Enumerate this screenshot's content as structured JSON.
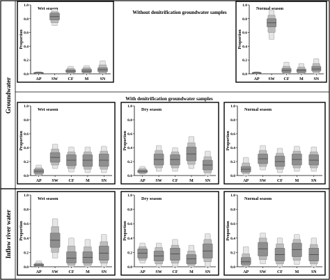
{
  "headings": {
    "without": "Without denitrification groundwater samples",
    "with": "With denitrification groundwater samples"
  },
  "groups": {
    "groundwater": "Groundwater",
    "inflow": "Inflow river water"
  },
  "chart_data": [
    {
      "id": "gw-without-wet",
      "type": "box",
      "season_label": "Wet season",
      "ylabel": "Proportion",
      "categories": [
        "AP",
        "SW",
        "CF",
        "M",
        "SN"
      ],
      "ylim": [
        0,
        1.0
      ],
      "yticks": [
        "0.0",
        "0.2",
        "0.4",
        "0.6",
        "0.8",
        "1.0"
      ],
      "bands": [
        {
          "category": "AP",
          "outer": [
            0.0,
            0.03
          ],
          "mid": [
            0.005,
            0.025
          ],
          "inner": [
            0.01,
            0.02
          ],
          "median": 0.015
        },
        {
          "category": "SW",
          "outer": [
            0.7,
            0.94
          ],
          "mid": [
            0.74,
            0.9
          ],
          "inner": [
            0.78,
            0.88
          ],
          "median": 0.83
        },
        {
          "category": "CF",
          "outer": [
            0.0,
            0.11
          ],
          "mid": [
            0.01,
            0.08
          ],
          "inner": [
            0.02,
            0.06
          ],
          "median": 0.04
        },
        {
          "category": "M",
          "outer": [
            0.0,
            0.12
          ],
          "mid": [
            0.01,
            0.09
          ],
          "inner": [
            0.02,
            0.07
          ],
          "median": 0.04
        },
        {
          "category": "SN",
          "outer": [
            0.0,
            0.19
          ],
          "mid": [
            0.01,
            0.13
          ],
          "inner": [
            0.03,
            0.09
          ],
          "median": 0.06
        }
      ]
    },
    {
      "id": "gw-without-normal",
      "type": "box",
      "season_label": "Normal season",
      "ylabel": "Proportion",
      "categories": [
        "AP",
        "SW",
        "CF",
        "M",
        "SN"
      ],
      "ylim": [
        0,
        1.0
      ],
      "yticks": [
        "0.0",
        "0.2",
        "0.4",
        "0.6",
        "0.8",
        "1.0"
      ],
      "bands": [
        {
          "category": "AP",
          "outer": [
            0.0,
            0.03
          ],
          "mid": [
            0.005,
            0.025
          ],
          "inner": [
            0.01,
            0.02
          ],
          "median": 0.015
        },
        {
          "category": "SW",
          "outer": [
            0.5,
            0.92
          ],
          "mid": [
            0.6,
            0.85
          ],
          "inner": [
            0.68,
            0.8
          ],
          "median": 0.74
        },
        {
          "category": "CF",
          "outer": [
            0.0,
            0.17
          ],
          "mid": [
            0.01,
            0.11
          ],
          "inner": [
            0.02,
            0.08
          ],
          "median": 0.05
        },
        {
          "category": "M",
          "outer": [
            0.0,
            0.15
          ],
          "mid": [
            0.01,
            0.1
          ],
          "inner": [
            0.02,
            0.07
          ],
          "median": 0.05
        },
        {
          "category": "SN",
          "outer": [
            0.0,
            0.22
          ],
          "mid": [
            0.02,
            0.15
          ],
          "inner": [
            0.04,
            0.11
          ],
          "median": 0.07
        }
      ]
    },
    {
      "id": "gw-with-wet",
      "type": "box",
      "season_label": "Wet season",
      "ylabel": "Proportion",
      "categories": [
        "AP",
        "SW",
        "CF",
        "M",
        "SN"
      ],
      "ylim": [
        0,
        1.0
      ],
      "yticks": [
        "0.0",
        "0.2",
        "0.4",
        "0.6",
        "0.8",
        "1.0"
      ],
      "bands": [
        {
          "category": "AP",
          "outer": [
            0.0,
            0.15
          ],
          "mid": [
            0.01,
            0.11
          ],
          "inner": [
            0.03,
            0.09
          ],
          "median": 0.06
        },
        {
          "category": "SW",
          "outer": [
            0.1,
            0.45
          ],
          "mid": [
            0.15,
            0.38
          ],
          "inner": [
            0.19,
            0.33
          ],
          "median": 0.26
        },
        {
          "category": "CF",
          "outer": [
            0.05,
            0.41
          ],
          "mid": [
            0.1,
            0.34
          ],
          "inner": [
            0.14,
            0.3
          ],
          "median": 0.22
        },
        {
          "category": "M",
          "outer": [
            0.04,
            0.41
          ],
          "mid": [
            0.09,
            0.34
          ],
          "inner": [
            0.13,
            0.3
          ],
          "median": 0.22
        },
        {
          "category": "SN",
          "outer": [
            0.04,
            0.42
          ],
          "mid": [
            0.09,
            0.35
          ],
          "inner": [
            0.13,
            0.31
          ],
          "median": 0.22
        }
      ]
    },
    {
      "id": "gw-with-dry",
      "type": "box",
      "season_label": "Dry season",
      "ylabel": "Proportion",
      "categories": [
        "AP",
        "SW",
        "CF",
        "M",
        "SN"
      ],
      "ylim": [
        0,
        1.0
      ],
      "yticks": [
        "0.0",
        "0.2",
        "0.4",
        "0.6",
        "0.8",
        "1.0"
      ],
      "bands": [
        {
          "category": "AP",
          "outer": [
            0.02,
            0.13
          ],
          "mid": [
            0.03,
            0.1
          ],
          "inner": [
            0.04,
            0.08
          ],
          "median": 0.06
        },
        {
          "category": "SW",
          "outer": [
            0.06,
            0.43
          ],
          "mid": [
            0.11,
            0.36
          ],
          "inner": [
            0.15,
            0.31
          ],
          "median": 0.23
        },
        {
          "category": "CF",
          "outer": [
            0.06,
            0.4
          ],
          "mid": [
            0.11,
            0.34
          ],
          "inner": [
            0.15,
            0.3
          ],
          "median": 0.23
        },
        {
          "category": "M",
          "outer": [
            0.1,
            0.56
          ],
          "mid": [
            0.16,
            0.47
          ],
          "inner": [
            0.21,
            0.41
          ],
          "median": 0.31
        },
        {
          "category": "SN",
          "outer": [
            0.0,
            0.35
          ],
          "mid": [
            0.04,
            0.27
          ],
          "inner": [
            0.08,
            0.22
          ],
          "median": 0.15
        }
      ]
    },
    {
      "id": "gw-with-normal",
      "type": "box",
      "season_label": "Normal season",
      "ylabel": "Proportion",
      "categories": [
        "AP",
        "SW",
        "CF",
        "M",
        "SN"
      ],
      "ylim": [
        0,
        1.0
      ],
      "yticks": [
        "0.0",
        "0.2",
        "0.4",
        "0.6",
        "0.8",
        "1.0"
      ],
      "bands": [
        {
          "category": "AP",
          "outer": [
            0.0,
            0.26
          ],
          "mid": [
            0.03,
            0.18
          ],
          "inner": [
            0.05,
            0.13
          ],
          "median": 0.09
        },
        {
          "category": "SW",
          "outer": [
            0.08,
            0.43
          ],
          "mid": [
            0.13,
            0.36
          ],
          "inner": [
            0.17,
            0.31
          ],
          "median": 0.24
        },
        {
          "category": "CF",
          "outer": [
            0.04,
            0.39
          ],
          "mid": [
            0.09,
            0.32
          ],
          "inner": [
            0.13,
            0.28
          ],
          "median": 0.2
        },
        {
          "category": "M",
          "outer": [
            0.06,
            0.42
          ],
          "mid": [
            0.11,
            0.35
          ],
          "inner": [
            0.15,
            0.31
          ],
          "median": 0.23
        },
        {
          "category": "SN",
          "outer": [
            0.06,
            0.41
          ],
          "mid": [
            0.11,
            0.34
          ],
          "inner": [
            0.15,
            0.3
          ],
          "median": 0.22
        }
      ]
    },
    {
      "id": "river-wet",
      "type": "box",
      "season_label": "Wet season",
      "ylabel": "Proportion",
      "categories": [
        "AP",
        "SW",
        "CF",
        "M",
        "SN"
      ],
      "ylim": [
        0,
        1.0
      ],
      "yticks": [
        "0.0",
        "0.2",
        "0.4",
        "0.6",
        "0.8",
        "1.0"
      ],
      "bands": [
        {
          "category": "AP",
          "outer": [
            0.0,
            0.08
          ],
          "mid": [
            0.005,
            0.05
          ],
          "inner": [
            0.01,
            0.04
          ],
          "median": 0.025
        },
        {
          "category": "SW",
          "outer": [
            0.12,
            0.67
          ],
          "mid": [
            0.2,
            0.56
          ],
          "inner": [
            0.27,
            0.47
          ],
          "median": 0.37
        },
        {
          "category": "CF",
          "outer": [
            0.0,
            0.4
          ],
          "mid": [
            0.02,
            0.29
          ],
          "inner": [
            0.05,
            0.21
          ],
          "median": 0.12
        },
        {
          "category": "M",
          "outer": [
            0.0,
            0.38
          ],
          "mid": [
            0.02,
            0.28
          ],
          "inner": [
            0.05,
            0.21
          ],
          "median": 0.13
        },
        {
          "category": "SN",
          "outer": [
            0.0,
            0.45
          ],
          "mid": [
            0.05,
            0.35
          ],
          "inner": [
            0.09,
            0.29
          ],
          "median": 0.19
        }
      ]
    },
    {
      "id": "river-dry",
      "type": "box",
      "season_label": "Dry season",
      "ylabel": "Proportion",
      "categories": [
        "AP",
        "SW",
        "CF",
        "M",
        "SN"
      ],
      "ylim": [
        0,
        1.0
      ],
      "yticks": [
        "0.0",
        "0.2",
        "0.4",
        "0.6",
        "0.8",
        "1.0"
      ],
      "bands": [
        {
          "category": "AP",
          "outer": [
            0.05,
            0.33
          ],
          "mid": [
            0.09,
            0.28
          ],
          "inner": [
            0.12,
            0.25
          ],
          "median": 0.19
        },
        {
          "category": "SW",
          "outer": [
            0.0,
            0.33
          ],
          "mid": [
            0.04,
            0.27
          ],
          "inner": [
            0.08,
            0.22
          ],
          "median": 0.15
        },
        {
          "category": "CF",
          "outer": [
            0.0,
            0.38
          ],
          "mid": [
            0.05,
            0.3
          ],
          "inner": [
            0.09,
            0.26
          ],
          "median": 0.18
        },
        {
          "category": "M",
          "outer": [
            0.0,
            0.3
          ],
          "mid": [
            0.02,
            0.22
          ],
          "inner": [
            0.04,
            0.17
          ],
          "median": 0.11
        },
        {
          "category": "SN",
          "outer": [
            0.0,
            0.46
          ],
          "mid": [
            0.07,
            0.38
          ],
          "inner": [
            0.12,
            0.32
          ],
          "median": 0.22
        }
      ]
    },
    {
      "id": "river-normal",
      "type": "box",
      "season_label": "Normal season",
      "ylabel": "Proportion",
      "categories": [
        "AP",
        "SW",
        "CF",
        "M",
        "SN"
      ],
      "ylim": [
        0,
        1.0
      ],
      "yticks": [
        "0.0",
        "0.2",
        "0.4",
        "0.6",
        "0.8",
        "1.0"
      ],
      "bands": [
        {
          "category": "AP",
          "outer": [
            0.0,
            0.28
          ],
          "mid": [
            0.01,
            0.18
          ],
          "inner": [
            0.03,
            0.13
          ],
          "median": 0.07
        },
        {
          "category": "SW",
          "outer": [
            0.04,
            0.47
          ],
          "mid": [
            0.1,
            0.4
          ],
          "inner": [
            0.15,
            0.34
          ],
          "median": 0.25
        },
        {
          "category": "CF",
          "outer": [
            0.0,
            0.4
          ],
          "mid": [
            0.04,
            0.32
          ],
          "inner": [
            0.08,
            0.26
          ],
          "median": 0.17
        },
        {
          "category": "M",
          "outer": [
            0.03,
            0.45
          ],
          "mid": [
            0.09,
            0.38
          ],
          "inner": [
            0.14,
            0.33
          ],
          "median": 0.24
        },
        {
          "category": "SN",
          "outer": [
            0.0,
            0.4
          ],
          "mid": [
            0.04,
            0.31
          ],
          "inner": [
            0.08,
            0.26
          ],
          "median": 0.17
        }
      ]
    }
  ]
}
